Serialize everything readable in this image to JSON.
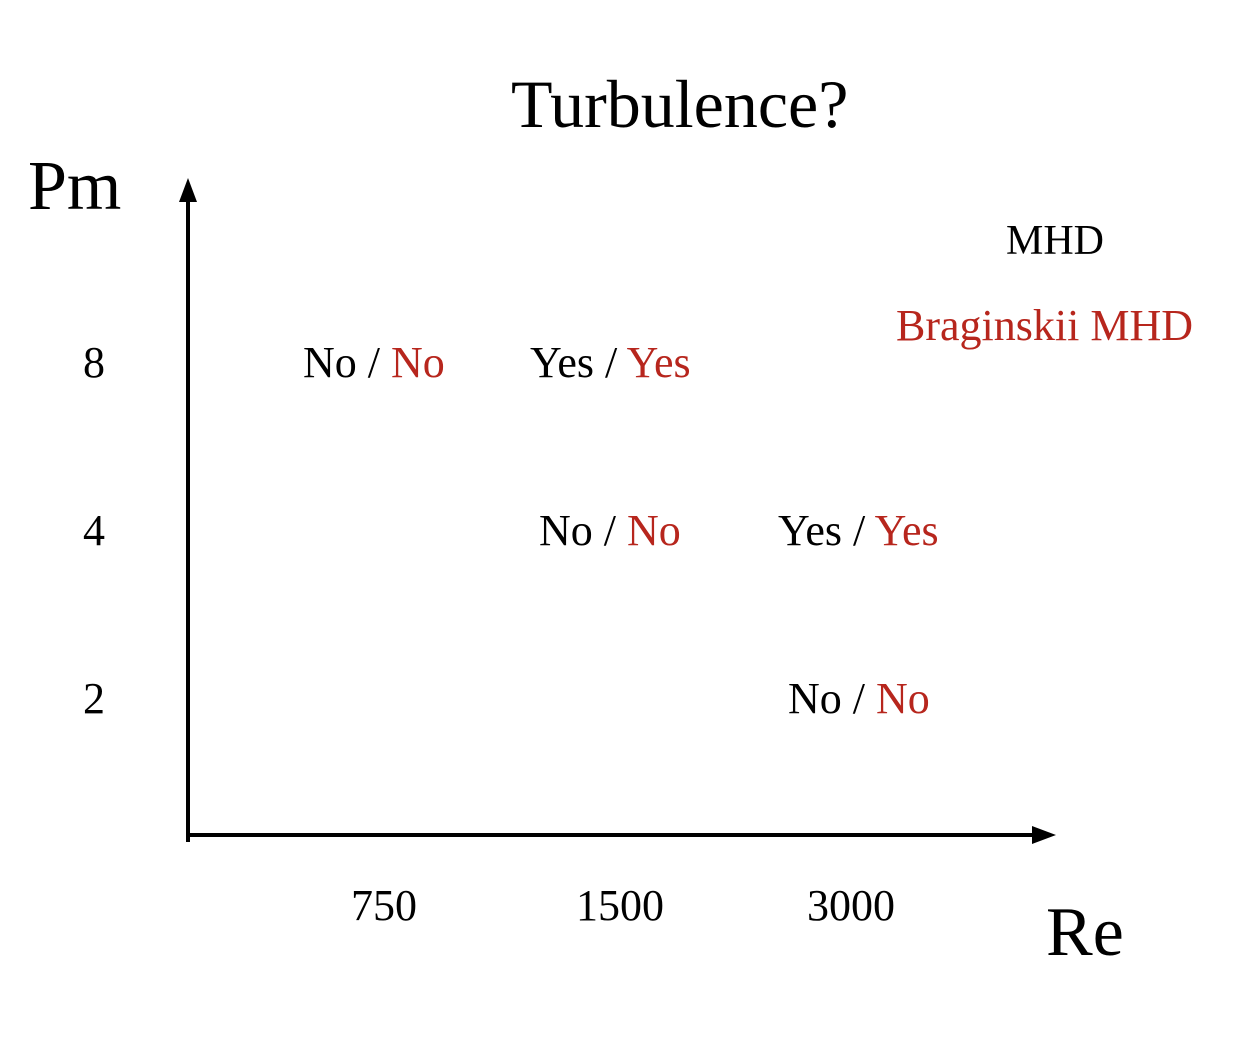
{
  "title": "Turbulence?",
  "y_axis": {
    "label": "Pm",
    "ticks": [
      "8",
      "4",
      "2"
    ]
  },
  "x_axis": {
    "label": "Re",
    "ticks": [
      "750",
      "1500",
      "3000"
    ]
  },
  "legend": {
    "mhd": "MHD",
    "braginskii": "Braginskii MHD",
    "mhd_color": "#000000",
    "braginskii_color": "#b7261d"
  },
  "separator": " / ",
  "cells": [
    {
      "re": "750",
      "pm": "8",
      "mhd": "No",
      "braginskii": "No"
    },
    {
      "re": "1500",
      "pm": "8",
      "mhd": "Yes",
      "braginskii": "Yes"
    },
    {
      "re": "1500",
      "pm": "4",
      "mhd": "No",
      "braginskii": "No"
    },
    {
      "re": "3000",
      "pm": "4",
      "mhd": "Yes",
      "braginskii": "Yes"
    },
    {
      "re": "3000",
      "pm": "2",
      "mhd": "No",
      "braginskii": "No"
    }
  ]
}
